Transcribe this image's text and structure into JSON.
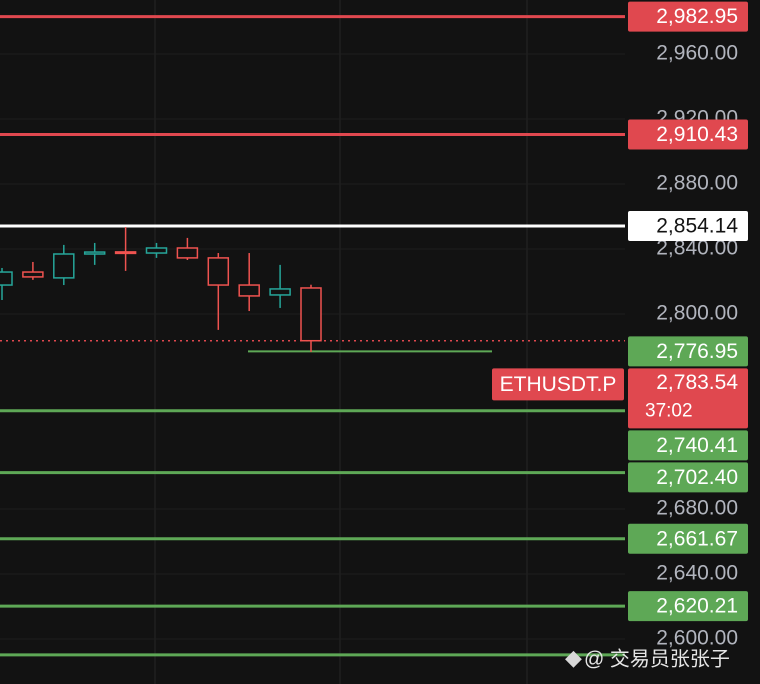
{
  "chart_data": {
    "type": "candlestick",
    "ylim": [
      2572.3,
      2993.2
    ],
    "yticks": [
      {
        "value": 2960,
        "label": "2,960.00"
      },
      {
        "value": 2920,
        "label": "2,920.00"
      },
      {
        "value": 2880,
        "label": "2,880.00"
      },
      {
        "value": 2840,
        "label": "2,840.00"
      },
      {
        "value": 2800,
        "label": "2,800.00"
      },
      {
        "value": 2680,
        "label": "2,680.00"
      },
      {
        "value": 2640,
        "label": "2,640.00"
      },
      {
        "value": 2600,
        "label": "2,600.00"
      }
    ],
    "up_color": "#26a69a",
    "down_color": "#ef5350",
    "candles": [
      {
        "open": 2817.8,
        "high": 2828.3,
        "low": 2808.6,
        "close": 2825.8
      },
      {
        "open": 2825.8,
        "high": 2832.0,
        "low": 2821.0,
        "close": 2822.8
      },
      {
        "open": 2822.2,
        "high": 2842.5,
        "low": 2817.8,
        "close": 2836.9
      },
      {
        "open": 2836.9,
        "high": 2843.7,
        "low": 2830.2,
        "close": 2838.1
      },
      {
        "open": 2838.2,
        "high": 2853.5,
        "low": 2826.5,
        "close": 2837.5
      },
      {
        "open": 2837.5,
        "high": 2843.7,
        "low": 2834.5,
        "close": 2840.6
      },
      {
        "open": 2840.6,
        "high": 2846.8,
        "low": 2833.2,
        "close": 2834.5
      },
      {
        "open": 2834.5,
        "high": 2837.5,
        "low": 2790.2,
        "close": 2817.8
      },
      {
        "open": 2817.8,
        "high": 2837.5,
        "low": 2801.8,
        "close": 2811.1
      },
      {
        "open": 2811.7,
        "high": 2830.2,
        "low": 2803.7,
        "close": 2815.4
      },
      {
        "open": 2816.0,
        "high": 2818.0,
        "low": 2776.6,
        "close": 2783.54
      }
    ],
    "levels": [
      {
        "value": 2982.95,
        "label": "2,982.95",
        "color": "#e0484f"
      },
      {
        "value": 2910.43,
        "label": "2,910.43",
        "color": "#e0484f"
      },
      {
        "value": 2854.14,
        "label": "2,854.14",
        "color": "#ffffff"
      },
      {
        "value": 2776.95,
        "label": "2,776.95",
        "color": "#5ea856",
        "style": "ray"
      },
      {
        "value": 2740.41,
        "label": "2,740.41",
        "color": "#5ea856"
      },
      {
        "value": 2702.4,
        "label": "2,702.40",
        "color": "#5ea856"
      },
      {
        "value": 2661.67,
        "label": "2,661.67",
        "color": "#5ea856"
      },
      {
        "value": 2620.21,
        "label": "2,620.21",
        "color": "#5ea856"
      },
      {
        "value": 2590.2,
        "color": "#5ea856"
      }
    ],
    "price": {
      "symbol": "ETHUSDT.P",
      "value": 2783.54,
      "label": "2,783.54",
      "countdown": "37:02",
      "color": "#e0484f"
    },
    "watermark": "@ 交易员张张子"
  }
}
